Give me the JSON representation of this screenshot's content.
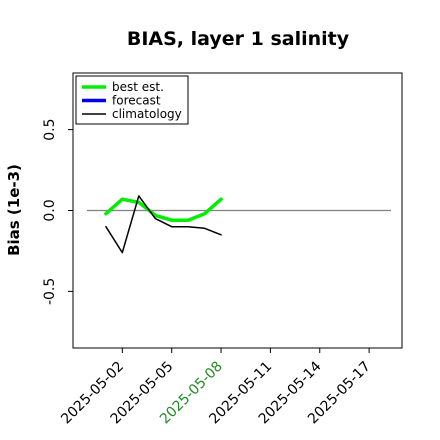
{
  "chart_data": {
    "type": "line",
    "title": "BIAS, layer 1 salinity",
    "xlabel": "",
    "ylabel": "Bias (1e-3)",
    "ylim": [
      -0.85,
      0.85
    ],
    "xlim": [
      "2025-04-29",
      "2025-05-19"
    ],
    "grid": false,
    "legend_position": "upper-left",
    "y_ticks": [
      -0.5,
      0.0,
      0.5
    ],
    "y_tick_labels": [
      "-0.5",
      "0.0",
      "0.5"
    ],
    "x_ticks": [
      "2025-05-02",
      "2025-05-05",
      "2025-05-08",
      "2025-05-11",
      "2025-05-14",
      "2025-05-17"
    ],
    "x_tick_labels": [
      "2025-05-02",
      "2025-05-05",
      "2025-05-08",
      "2025-05-11",
      "2025-05-14",
      "2025-05-17"
    ],
    "highlighted_tick": "2025-05-08",
    "highlight_color": "#228b22",
    "reference_line": 0.0,
    "reference_line_color": "#808080",
    "series": [
      {
        "name": "best est.",
        "color": "#00ee00",
        "x": [
          "2025-05-01",
          "2025-05-02",
          "2025-05-03",
          "2025-05-04",
          "2025-05-05",
          "2025-05-06",
          "2025-05-07",
          "2025-05-08"
        ],
        "values": [
          -0.02,
          0.07,
          0.05,
          -0.03,
          -0.06,
          -0.06,
          -0.02,
          0.07
        ]
      },
      {
        "name": "forecast",
        "color": "#0000ee",
        "x": [],
        "values": []
      },
      {
        "name": "climatology",
        "color": "#000000",
        "x": [
          "2025-05-01",
          "2025-05-02",
          "2025-05-03",
          "2025-05-04",
          "2025-05-05",
          "2025-05-06",
          "2025-05-07",
          "2025-05-08"
        ],
        "values": [
          -0.1,
          -0.26,
          0.09,
          -0.05,
          -0.1,
          -0.1,
          -0.11,
          -0.15
        ]
      }
    ]
  }
}
